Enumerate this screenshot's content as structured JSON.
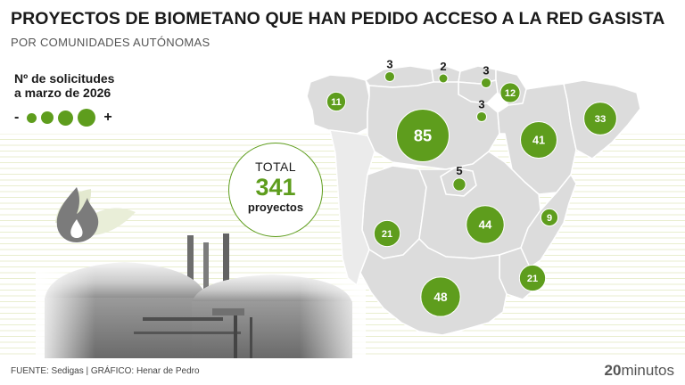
{
  "header": {
    "title": "PROYECTOS DE BIOMETANO QUE HAN PEDIDO ACCESO A LA RED GASISTA",
    "subtitle": "POR COMUNIDADES AUTÓNOMAS"
  },
  "legend": {
    "title_line1": "Nº de solicitudes",
    "title_line2": "a marzo de 2026",
    "min_symbol": "-",
    "max_symbol": "+"
  },
  "total": {
    "label": "TOTAL",
    "value": "341",
    "unit": "proyectos"
  },
  "regions": [
    {
      "id": "galicia",
      "value": 11
    },
    {
      "id": "asturias",
      "value": 3
    },
    {
      "id": "cantabria",
      "value": 2
    },
    {
      "id": "pais-vasco",
      "value": 3
    },
    {
      "id": "navarra",
      "value": 12
    },
    {
      "id": "la-rioja",
      "value": 3
    },
    {
      "id": "castilla-y-leon",
      "value": 85
    },
    {
      "id": "aragon",
      "value": 41
    },
    {
      "id": "cataluna",
      "value": 33
    },
    {
      "id": "madrid",
      "value": 5
    },
    {
      "id": "extremadura",
      "value": 21
    },
    {
      "id": "castilla-la-mancha",
      "value": 44
    },
    {
      "id": "comunidad-valenciana",
      "value": 9
    },
    {
      "id": "andalucia",
      "value": 48
    },
    {
      "id": "murcia",
      "value": 21
    }
  ],
  "colors": {
    "bubble": "#5e9d1d",
    "map_fill": "#dcdcdc",
    "map_border": "#ffffff",
    "accent_text": "#5e9d1d"
  },
  "icons": [
    "flame-icon",
    "leaf-icon"
  ],
  "footer": {
    "source": "FUENTE: Sedigas  |  GRÁFICO: Henar de Pedro",
    "brand_number": "20",
    "brand_word": "minutos"
  }
}
